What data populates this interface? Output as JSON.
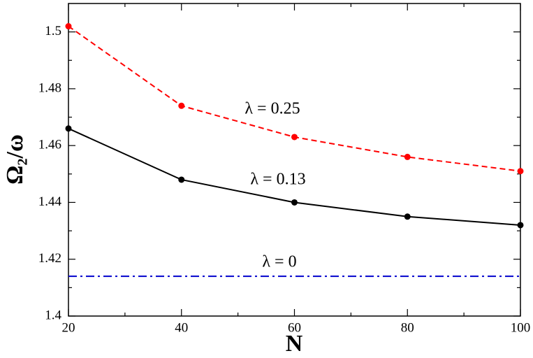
{
  "chart_data": {
    "type": "line",
    "x_label": "N",
    "y_label": "Ω₂/ω",
    "x": [
      20,
      40,
      60,
      80,
      100
    ],
    "series": [
      {
        "name": "λ = 0.25",
        "color": "#ff0000",
        "dash": "dashed",
        "markers": true,
        "values": [
          1.502,
          1.474,
          1.463,
          1.456,
          1.451
        ]
      },
      {
        "name": "λ = 0.13",
        "color": "#000000",
        "dash": "solid",
        "markers": true,
        "values": [
          1.466,
          1.448,
          1.44,
          1.435,
          1.432
        ]
      },
      {
        "name": "λ = 0",
        "color": "#0000cc",
        "dash": "dashdot",
        "markers": false,
        "values": [
          1.414,
          1.414,
          1.414,
          1.414,
          1.414
        ]
      }
    ],
    "xlim": [
      20,
      100
    ],
    "xticks": [
      20,
      40,
      60,
      80,
      100
    ],
    "ylim": [
      1.4,
      1.51
    ],
    "yticks": [
      1.4,
      1.42,
      1.44,
      1.46,
      1.48,
      1.5
    ],
    "grid": false
  }
}
